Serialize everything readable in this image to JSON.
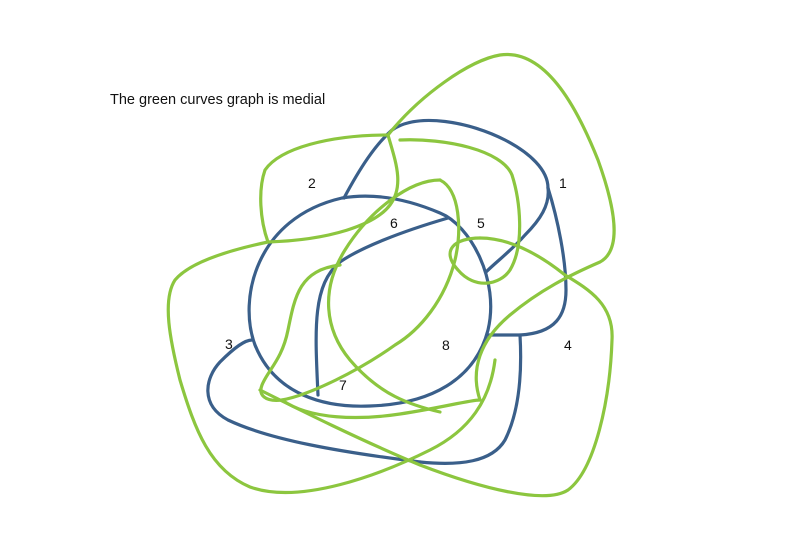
{
  "caption": "The green curves graph is medial",
  "colors": {
    "blue": "#3a5f8a",
    "green": "#8cc63f"
  },
  "regions": [
    {
      "id": "1",
      "label": "1"
    },
    {
      "id": "2",
      "label": "2"
    },
    {
      "id": "3",
      "label": "3"
    },
    {
      "id": "4",
      "label": "4"
    },
    {
      "id": "5",
      "label": "5"
    },
    {
      "id": "6",
      "label": "6"
    },
    {
      "id": "7",
      "label": "7"
    },
    {
      "id": "8",
      "label": "8"
    }
  ]
}
